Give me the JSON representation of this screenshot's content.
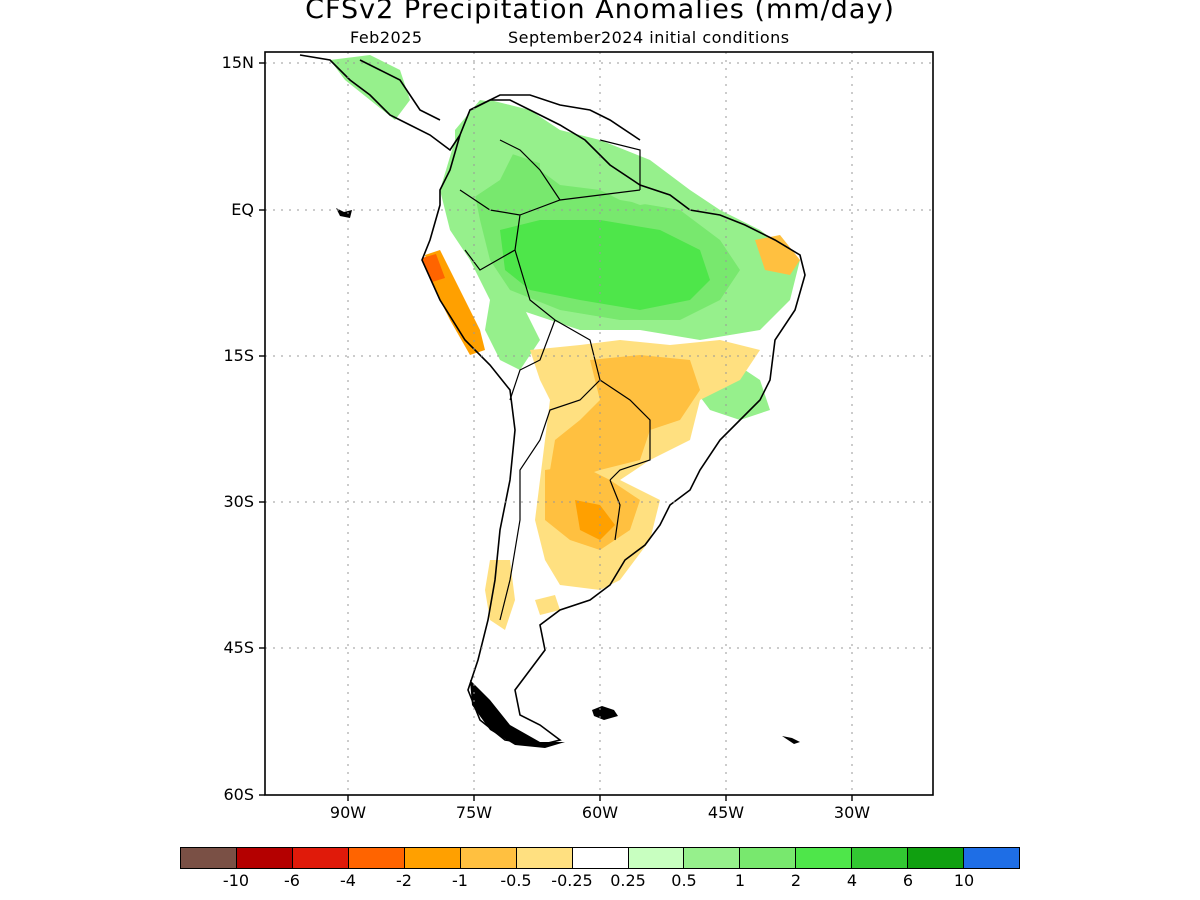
{
  "title": "CFSv2 Precipitation Anomalies (mm/day)",
  "subtitle_left": "Feb2025",
  "subtitle_right": "September2024 initial conditions",
  "lat_labels": [
    "15N",
    "EQ",
    "15S",
    "30S",
    "45S",
    "60S"
  ],
  "lon_labels": [
    "90W",
    "75W",
    "60W",
    "45W",
    "30W"
  ],
  "colorbar": {
    "colors": [
      "#7a5045",
      "#b40000",
      "#e01a0a",
      "#ff6400",
      "#ffa000",
      "#ffc040",
      "#ffe080",
      "#ffffff",
      "#c8ffc0",
      "#96f08c",
      "#78e86e",
      "#4ee64a",
      "#32c832",
      "#10a010",
      "#1e6ee6"
    ],
    "labels": [
      "-10",
      "-6",
      "-4",
      "-2",
      "-1",
      "-0.5",
      "-0.25",
      "0.25",
      "0.5",
      "1",
      "2",
      "4",
      "6",
      "10"
    ]
  }
}
